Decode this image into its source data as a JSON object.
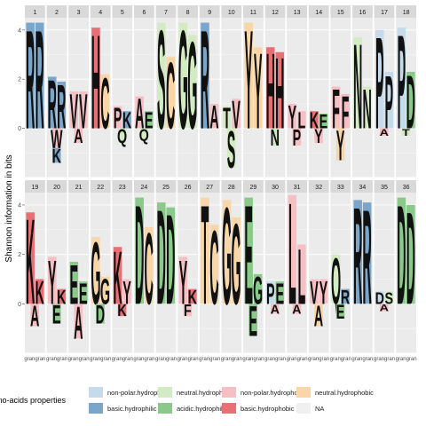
{
  "chart_data": {
    "type": "sequence-logo",
    "ylabel": "Shannon information in bits",
    "y_ticks": [
      0,
      2,
      4
    ],
    "ylim": [
      -2,
      4.5
    ],
    "x_tick_label": "gran",
    "legend": {
      "title": "Amino-acids properties",
      "items": [
        {
          "label": "non-polar.hydrophilic",
          "color": "#c6dbe9"
        },
        {
          "label": "neutral.hydrophilic",
          "color": "#d2ebc3"
        },
        {
          "label": "non-polar.hydrophobic",
          "color": "#f6bfc4"
        },
        {
          "label": "neutral.hydrophobic",
          "color": "#f8d6a8"
        },
        {
          "label": "basic.hydrophilic",
          "color": "#7aa6cc"
        },
        {
          "label": "acidic.hydrophilic",
          "color": "#8ac98a"
        },
        {
          "label": "basic.hydrophobic",
          "color": "#e87074"
        },
        {
          "label": "NA",
          "color": "#f0f0f0"
        }
      ]
    },
    "positions": [
      {
        "id": "1",
        "stacks": [
          {
            "letter": "R",
            "height": 4.3,
            "color": "#7aa6cc"
          },
          {
            "letter": "R",
            "height": 4.3,
            "color": "#7aa6cc"
          }
        ]
      },
      {
        "id": "2",
        "stacks": [
          {
            "letter": "R",
            "height": 2.1,
            "color": "#7aa6cc"
          },
          {
            "letter": "R",
            "height": 1.9,
            "color": "#7aa6cc"
          },
          {
            "letter": "W",
            "height": -0.8,
            "color": "#f6bfc4"
          },
          {
            "letter": "K",
            "height": -0.6,
            "color": "#7aa6cc"
          }
        ]
      },
      {
        "id": "3",
        "stacks": [
          {
            "letter": "V",
            "height": 1.5,
            "color": "#f6bfc4"
          },
          {
            "letter": "V",
            "height": 1.5,
            "color": "#f6bfc4"
          },
          {
            "letter": "A",
            "height": -0.6,
            "color": "#f6bfc4"
          }
        ]
      },
      {
        "id": "4",
        "stacks": [
          {
            "letter": "H",
            "height": 4.1,
            "color": "#e87074"
          },
          {
            "letter": "C",
            "height": 2.2,
            "color": "#f8d6a8"
          }
        ]
      },
      {
        "id": "5",
        "stacks": [
          {
            "letter": "P",
            "height": 0.9,
            "color": "#f6bfc4"
          },
          {
            "letter": "K",
            "height": 0.7,
            "color": "#7aa6cc"
          },
          {
            "letter": "Q",
            "height": -0.6,
            "color": "#d2ebc3"
          }
        ]
      },
      {
        "id": "6",
        "stacks": [
          {
            "letter": "A",
            "height": 1.3,
            "color": "#f6bfc4"
          },
          {
            "letter": "E",
            "height": 0.7,
            "color": "#8ac98a"
          },
          {
            "letter": "Q",
            "height": -0.5,
            "color": "#d2ebc3"
          }
        ]
      },
      {
        "id": "7",
        "stacks": [
          {
            "letter": "S",
            "height": 4.3,
            "color": "#d2ebc3"
          },
          {
            "letter": "C",
            "height": 2.9,
            "color": "#f8d6a8"
          }
        ]
      },
      {
        "id": "8",
        "stacks": [
          {
            "letter": "G",
            "height": 4.3,
            "color": "#d2ebc3"
          },
          {
            "letter": "G",
            "height": 3.8,
            "color": "#d2ebc3"
          }
        ]
      },
      {
        "id": "9",
        "stacks": [
          {
            "letter": "R",
            "height": 4.3,
            "color": "#7aa6cc"
          },
          {
            "letter": "A",
            "height": 1.0,
            "color": "#f6bfc4"
          }
        ]
      },
      {
        "id": "10",
        "stacks": [
          {
            "letter": "T",
            "height": 0.9,
            "color": "#d2ebc3"
          },
          {
            "letter": "V",
            "height": 1.2,
            "color": "#f6bfc4"
          },
          {
            "letter": "S",
            "height": -1.6,
            "color": "#d2ebc3"
          }
        ]
      },
      {
        "id": "11",
        "stacks": [
          {
            "letter": "Y",
            "height": 4.3,
            "color": "#f8d6a8"
          },
          {
            "letter": "Y",
            "height": 3.3,
            "color": "#f8d6a8"
          }
        ]
      },
      {
        "id": "12",
        "stacks": [
          {
            "letter": "H",
            "height": 3.3,
            "color": "#e87074"
          },
          {
            "letter": "H",
            "height": 3.1,
            "color": "#e87074"
          },
          {
            "letter": "N",
            "height": -0.7,
            "color": "#d2ebc3"
          }
        ]
      },
      {
        "id": "13",
        "stacks": [
          {
            "letter": "Y",
            "height": 1.0,
            "color": "#f6bfc4"
          },
          {
            "letter": "L",
            "height": 0.7,
            "color": "#f6bfc4"
          },
          {
            "letter": "P",
            "height": -0.7,
            "color": "#f6bfc4"
          }
        ]
      },
      {
        "id": "14",
        "stacks": [
          {
            "letter": "K",
            "height": 0.7,
            "color": "#e87074"
          },
          {
            "letter": "E",
            "height": 0.6,
            "color": "#8ac98a"
          },
          {
            "letter": "Y",
            "height": -0.6,
            "color": "#f6bfc4"
          }
        ]
      },
      {
        "id": "15",
        "stacks": [
          {
            "letter": "F",
            "height": 1.7,
            "color": "#f6bfc4"
          },
          {
            "letter": "F",
            "height": 1.4,
            "color": "#f6bfc4"
          },
          {
            "letter": "Y",
            "height": -1.3,
            "color": "#f8d6a8"
          }
        ]
      },
      {
        "id": "16",
        "stacks": [
          {
            "letter": "N",
            "height": 3.7,
            "color": "#d2ebc3"
          },
          {
            "letter": "N",
            "height": 1.7,
            "color": "#d2ebc3"
          }
        ]
      },
      {
        "id": "17",
        "stacks": [
          {
            "letter": "P",
            "height": 4.0,
            "color": "#c6dbe9"
          },
          {
            "letter": "P",
            "height": 2.3,
            "color": "#c6dbe9"
          },
          {
            "letter": "A",
            "height": -0.3,
            "color": "#f6bfc4"
          }
        ]
      },
      {
        "id": "18",
        "stacks": [
          {
            "letter": "P",
            "height": 4.1,
            "color": "#c6dbe9"
          },
          {
            "letter": "D",
            "height": 2.3,
            "color": "#8ac98a"
          },
          {
            "letter": "T",
            "height": -0.3,
            "color": "#d2ebc3"
          }
        ]
      },
      {
        "id": "19",
        "stacks": [
          {
            "letter": "K",
            "height": 3.7,
            "color": "#e87074"
          },
          {
            "letter": "K",
            "height": 1.0,
            "color": "#e87074"
          },
          {
            "letter": "A",
            "height": -0.9,
            "color": "#f6bfc4"
          }
        ]
      },
      {
        "id": "20",
        "stacks": [
          {
            "letter": "Y",
            "height": 1.9,
            "color": "#f6bfc4"
          },
          {
            "letter": "K",
            "height": 0.6,
            "color": "#e87074"
          },
          {
            "letter": "E",
            "height": -0.8,
            "color": "#8ac98a"
          }
        ]
      },
      {
        "id": "21",
        "stacks": [
          {
            "letter": "E",
            "height": 1.7,
            "color": "#8ac98a"
          },
          {
            "letter": "E",
            "height": 0.9,
            "color": "#8ac98a"
          },
          {
            "letter": "A",
            "height": -1.4,
            "color": "#f6bfc4"
          }
        ]
      },
      {
        "id": "22",
        "stacks": [
          {
            "letter": "G",
            "height": 2.7,
            "color": "#f8d6a8"
          },
          {
            "letter": "G",
            "height": 1.1,
            "color": "#f8d6a8"
          },
          {
            "letter": "D",
            "height": -0.8,
            "color": "#8ac98a"
          }
        ]
      },
      {
        "id": "23",
        "stacks": [
          {
            "letter": "K",
            "height": 2.3,
            "color": "#e87074"
          },
          {
            "letter": "Y",
            "height": 1.0,
            "color": "#f6bfc4"
          },
          {
            "letter": "K",
            "height": -0.5,
            "color": "#e87074"
          }
        ]
      },
      {
        "id": "24",
        "stacks": [
          {
            "letter": "D",
            "height": 4.3,
            "color": "#8ac98a"
          },
          {
            "letter": "C",
            "height": 3.1,
            "color": "#f8d6a8"
          }
        ]
      },
      {
        "id": "25",
        "stacks": [
          {
            "letter": "D",
            "height": 4.1,
            "color": "#8ac98a"
          },
          {
            "letter": "D",
            "height": 3.9,
            "color": "#8ac98a"
          }
        ]
      },
      {
        "id": "26",
        "stacks": [
          {
            "letter": "Y",
            "height": 1.9,
            "color": "#f6bfc4"
          },
          {
            "letter": "K",
            "height": 0.6,
            "color": "#e87074"
          },
          {
            "letter": "F",
            "height": -0.5,
            "color": "#f6bfc4"
          }
        ]
      },
      {
        "id": "27",
        "stacks": [
          {
            "letter": "T",
            "height": 4.3,
            "color": "#f8d6a8"
          },
          {
            "letter": "C",
            "height": 3.2,
            "color": "#f8d6a8"
          }
        ]
      },
      {
        "id": "28",
        "stacks": [
          {
            "letter": "G",
            "height": 4.2,
            "color": "#f8d6a8"
          },
          {
            "letter": "G",
            "height": 3.5,
            "color": "#f8d6a8"
          }
        ]
      },
      {
        "id": "29",
        "stacks": [
          {
            "letter": "E",
            "height": 4.3,
            "color": "#8ac98a"
          },
          {
            "letter": "G",
            "height": 1.2,
            "color": "#8ac98a"
          },
          {
            "letter": "E",
            "height": -1.3,
            "color": "#8ac98a"
          }
        ]
      },
      {
        "id": "30",
        "stacks": [
          {
            "letter": "P",
            "height": 0.9,
            "color": "#c6dbe9"
          },
          {
            "letter": "E",
            "height": 0.9,
            "color": "#8ac98a"
          },
          {
            "letter": "A",
            "height": -0.4,
            "color": "#f6bfc4"
          }
        ]
      },
      {
        "id": "31",
        "stacks": [
          {
            "letter": "L",
            "height": 4.4,
            "color": "#f6bfc4"
          },
          {
            "letter": "L",
            "height": 2.4,
            "color": "#f6bfc4"
          },
          {
            "letter": "A",
            "height": -0.4,
            "color": "#f6bfc4"
          }
        ]
      },
      {
        "id": "32",
        "stacks": [
          {
            "letter": "V",
            "height": 1.0,
            "color": "#f6bfc4"
          },
          {
            "letter": "Y",
            "height": 1.0,
            "color": "#f6bfc4"
          },
          {
            "letter": "A",
            "height": -0.9,
            "color": "#f8d6a8"
          }
        ]
      },
      {
        "id": "33",
        "stacks": [
          {
            "letter": "Q",
            "height": 2.0,
            "color": "#d2ebc3"
          },
          {
            "letter": "R",
            "height": 0.6,
            "color": "#7aa6cc"
          },
          {
            "letter": "E",
            "height": -0.6,
            "color": "#8ac98a"
          }
        ]
      },
      {
        "id": "34",
        "stacks": [
          {
            "letter": "R",
            "height": 4.2,
            "color": "#7aa6cc"
          },
          {
            "letter": "R",
            "height": 4.1,
            "color": "#7aa6cc"
          }
        ]
      },
      {
        "id": "35",
        "stacks": [
          {
            "letter": "D",
            "height": 0.5,
            "color": "#c6dbe9"
          },
          {
            "letter": "S",
            "height": 0.5,
            "color": "#d2ebc3"
          },
          {
            "letter": "A",
            "height": -0.3,
            "color": "#f6bfc4"
          }
        ]
      },
      {
        "id": "36",
        "stacks": [
          {
            "letter": "D",
            "height": 4.3,
            "color": "#8ac98a"
          },
          {
            "letter": "D",
            "height": 4.0,
            "color": "#8ac98a"
          }
        ]
      }
    ]
  }
}
